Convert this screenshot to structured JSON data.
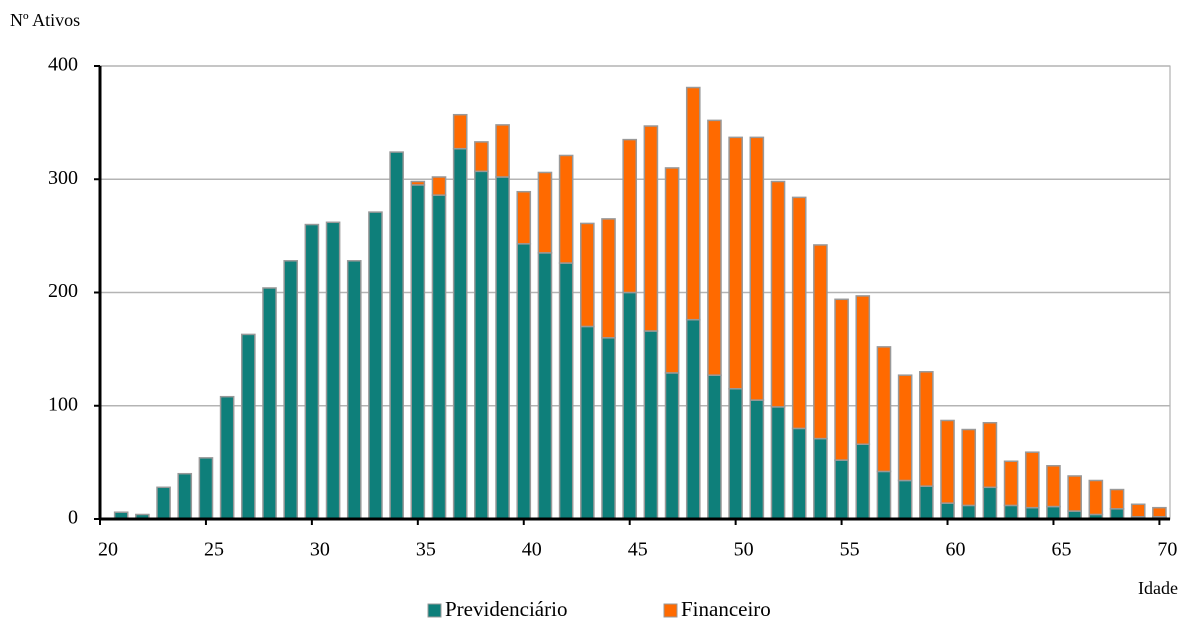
{
  "chart_data": {
    "type": "stacked_bar",
    "y_label": "Nº Ativos",
    "x_label": "Idade",
    "x": [
      21,
      22,
      23,
      24,
      25,
      26,
      27,
      28,
      29,
      30,
      31,
      32,
      33,
      34,
      35,
      36,
      37,
      38,
      39,
      40,
      41,
      42,
      43,
      44,
      45,
      46,
      47,
      48,
      49,
      50,
      51,
      52,
      53,
      54,
      55,
      56,
      57,
      58,
      59,
      60,
      61,
      62,
      63,
      64,
      65,
      66,
      67,
      68,
      69,
      70
    ],
    "series": [
      {
        "name": "Previdenciário",
        "color": "#0e7f7a",
        "values": [
          6,
          4,
          28,
          40,
          54,
          108,
          163,
          204,
          228,
          260,
          262,
          228,
          271,
          324,
          295,
          286,
          327,
          307,
          302,
          243,
          235,
          226,
          170,
          160,
          200,
          166,
          129,
          176,
          127,
          115,
          105,
          99,
          80,
          71,
          52,
          66,
          42,
          34,
          29,
          14,
          12,
          28,
          12,
          10,
          11,
          7,
          4,
          9,
          2,
          2
        ]
      },
      {
        "name": "Financeiro",
        "color": "#ff6a00",
        "values": [
          0,
          0,
          0,
          0,
          0,
          0,
          0,
          0,
          0,
          0,
          0,
          0,
          0,
          0,
          3,
          16,
          30,
          26,
          46,
          46,
          71,
          95,
          91,
          105,
          135,
          181,
          181,
          205,
          225,
          222,
          232,
          199,
          204,
          171,
          142,
          131,
          110,
          93,
          101,
          73,
          67,
          57,
          39,
          49,
          36,
          31,
          30,
          17,
          11,
          8
        ]
      }
    ],
    "xlim": [
      20,
      70.5
    ],
    "xticks": [
      20,
      25,
      30,
      35,
      40,
      45,
      50,
      55,
      60,
      65,
      70
    ],
    "ylim": [
      0,
      400
    ],
    "yticks": [
      0,
      100,
      200,
      300,
      400
    ],
    "grid": true
  }
}
